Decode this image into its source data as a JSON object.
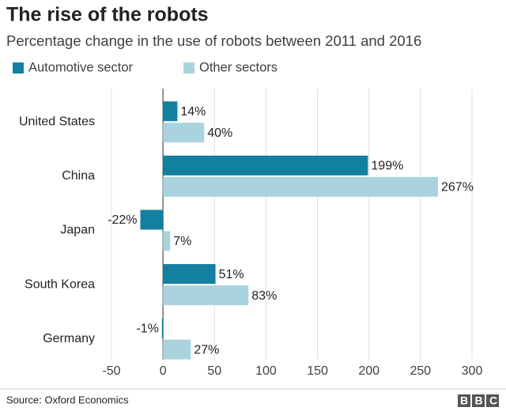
{
  "chart_data": {
    "type": "hbar",
    "title": "The rise of the robots",
    "subtitle": "Percentage change in the use of robots between 2011 and 2016",
    "categories": [
      "United States",
      "China",
      "Japan",
      "South Korea",
      "Germany"
    ],
    "series": [
      {
        "name": "Automotive sector",
        "color": "#1380a1",
        "values": [
          14,
          199,
          -22,
          51,
          -1
        ],
        "value_labels": [
          "14%",
          "199%",
          "-22%",
          "51%",
          "-1%"
        ]
      },
      {
        "name": "Other sectors",
        "color": "#a9d4df",
        "values": [
          40,
          267,
          7,
          83,
          27
        ],
        "value_labels": [
          "40%",
          "267%",
          "7%",
          "83%",
          "27%"
        ]
      }
    ],
    "xlim": [
      -50,
      300
    ],
    "xticks": [
      -50,
      0,
      50,
      100,
      150,
      200,
      250,
      300
    ],
    "grid": true,
    "source": "Source: Oxford Economics",
    "logo": "BBC"
  }
}
